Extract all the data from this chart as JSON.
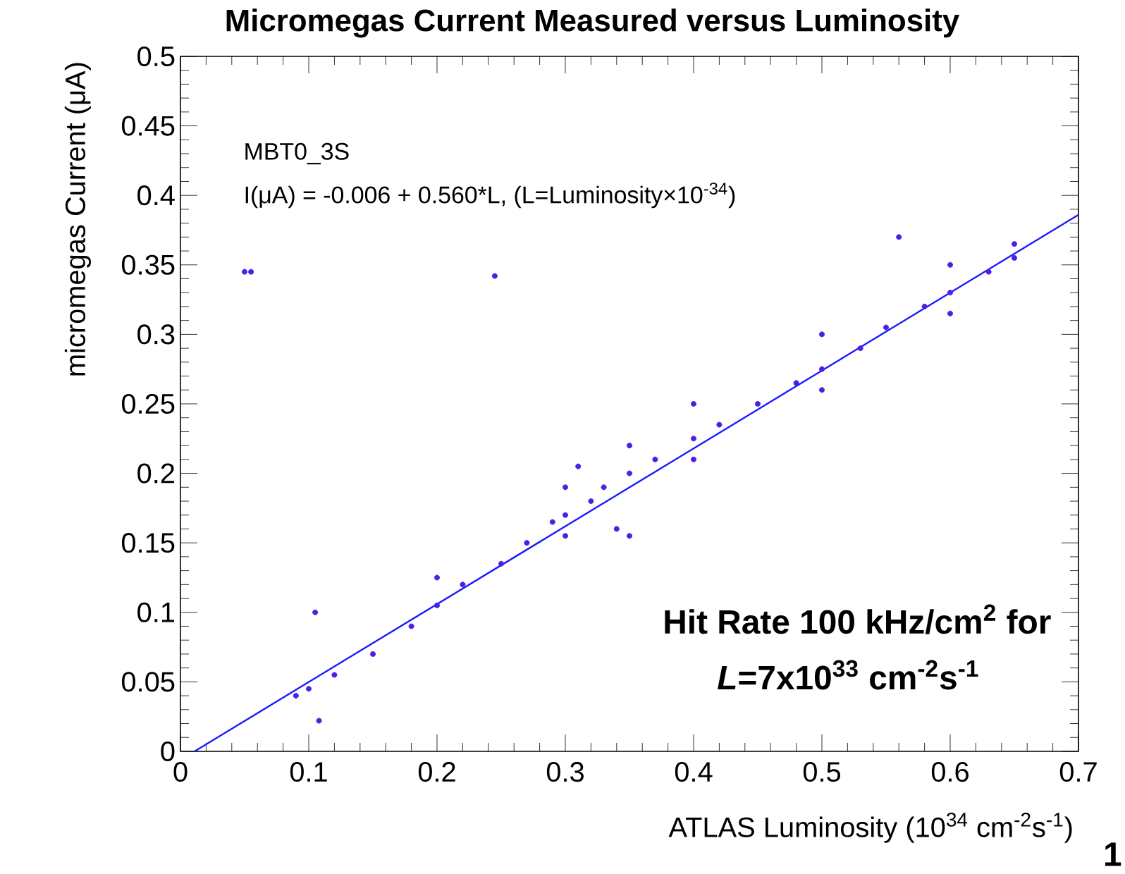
{
  "chart_data": {
    "type": "scatter",
    "title": "Micromegas Current Measured versus Luminosity",
    "xlabel": "ATLAS Luminosity (10$^{34}$ cm$^{-2}$s$^{-1}$)",
    "ylabel": "micromegas Current (μA)",
    "xlim": [
      0,
      0.7
    ],
    "ylim": [
      0,
      0.5
    ],
    "xticks": [
      0,
      0.1,
      0.2,
      0.3,
      0.4,
      0.5,
      0.6,
      0.7
    ],
    "yticks": [
      0,
      0.05,
      0.1,
      0.15,
      0.2,
      0.25,
      0.3,
      0.35,
      0.4,
      0.45,
      0.5
    ],
    "grid": false,
    "series": [
      {
        "color": "#4b1fe6",
        "x": [
          0.05,
          0.055,
          0.09,
          0.1,
          0.105,
          0.108,
          0.12,
          0.15,
          0.18,
          0.2,
          0.2,
          0.22,
          0.245,
          0.25,
          0.27,
          0.29,
          0.3,
          0.3,
          0.3,
          0.31,
          0.32,
          0.33,
          0.34,
          0.35,
          0.35,
          0.35,
          0.37,
          0.4,
          0.4,
          0.4,
          0.42,
          0.45,
          0.48,
          0.5,
          0.5,
          0.5,
          0.53,
          0.55,
          0.56,
          0.58,
          0.6,
          0.6,
          0.6,
          0.63,
          0.65,
          0.65
        ],
        "values": [
          0.345,
          0.345,
          0.04,
          0.045,
          0.1,
          0.022,
          0.055,
          0.07,
          0.09,
          0.105,
          0.125,
          0.12,
          0.342,
          0.135,
          0.15,
          0.165,
          0.17,
          0.19,
          0.155,
          0.205,
          0.18,
          0.19,
          0.16,
          0.2,
          0.155,
          0.22,
          0.21,
          0.225,
          0.25,
          0.21,
          0.235,
          0.25,
          0.265,
          0.275,
          0.3,
          0.26,
          0.29,
          0.305,
          0.37,
          0.32,
          0.33,
          0.35,
          0.315,
          0.345,
          0.355,
          0.365
        ]
      },
      {
        "type": "line",
        "line_style": "solid",
        "color": "#1a1aff",
        "x": [
          0.011,
          0.7
        ],
        "values": [
          0,
          0.386
        ]
      }
    ],
    "annotations": [
      "MBT0_3S",
      "I(μA) = -0.006 + 0.560*L, (L=Luminosity×10$^{-34}$)",
      "Hit Rate 100 kHz/cm$^{2}$ for",
      "*L*=7x10$^{33}$ cm$^{-2}$s$^{-1}$",
      "1"
    ]
  }
}
